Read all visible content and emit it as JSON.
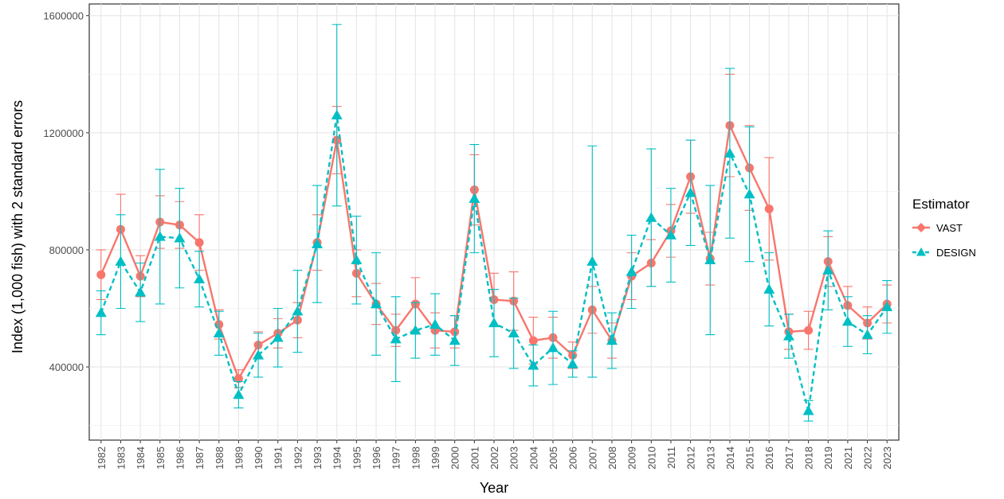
{
  "chart_data": {
    "type": "line",
    "x_label": "Year",
    "y_label": "Index (1,000 fish) with 2 standard errors",
    "legend_title": "Estimator",
    "legend_position": "right",
    "grid": true,
    "categories": [
      "1982",
      "1983",
      "1984",
      "1985",
      "1986",
      "1987",
      "1988",
      "1989",
      "1990",
      "1991",
      "1992",
      "1993",
      "1994",
      "1995",
      "1996",
      "1997",
      "1998",
      "1999",
      "2000",
      "2001",
      "2002",
      "2003",
      "2004",
      "2005",
      "2006",
      "2007",
      "2008",
      "2009",
      "2010",
      "2011",
      "2012",
      "2013",
      "2014",
      "2015",
      "2016",
      "2017",
      "2018",
      "2019",
      "2021",
      "2022",
      "2023"
    ],
    "ylim": [
      150000,
      1640000
    ],
    "yticks": [
      400000,
      800000,
      1200000,
      1600000
    ],
    "series": [
      {
        "name": "VAST",
        "color": "#F8766D",
        "marker": "circle",
        "line_style": "solid",
        "values": [
          715000,
          870000,
          710000,
          895000,
          885000,
          825000,
          545000,
          360000,
          475000,
          515000,
          560000,
          825000,
          1175000,
          720000,
          615000,
          525000,
          615000,
          525000,
          520000,
          1005000,
          630000,
          625000,
          490000,
          500000,
          440000,
          595000,
          490000,
          710000,
          755000,
          865000,
          1050000,
          770000,
          1225000,
          1080000,
          940000,
          520000,
          525000,
          760000,
          610000,
          550000,
          615000
        ],
        "errors": [
          85000,
          120000,
          70000,
          90000,
          80000,
          95000,
          50000,
          30000,
          45000,
          50000,
          60000,
          95000,
          115000,
          80000,
          70000,
          55000,
          90000,
          60000,
          55000,
          120000,
          90000,
          100000,
          80000,
          70000,
          45000,
          80000,
          60000,
          80000,
          80000,
          90000,
          125000,
          90000,
          175000,
          145000,
          175000,
          60000,
          65000,
          85000,
          65000,
          55000,
          65000
        ]
      },
      {
        "name": "DESIGN",
        "color": "#00BFC4",
        "marker": "triangle",
        "line_style": "dashed",
        "values": [
          585000,
          760000,
          655000,
          845000,
          840000,
          700000,
          515000,
          305000,
          440000,
          500000,
          590000,
          820000,
          1260000,
          765000,
          615000,
          495000,
          525000,
          545000,
          490000,
          975000,
          550000,
          515000,
          405000,
          465000,
          410000,
          760000,
          490000,
          725000,
          910000,
          850000,
          995000,
          765000,
          1130000,
          990000,
          665000,
          505000,
          250000,
          730000,
          555000,
          510000,
          605000
        ],
        "errors": [
          75000,
          160000,
          100000,
          230000,
          170000,
          95000,
          75000,
          45000,
          75000,
          100000,
          140000,
          200000,
          310000,
          150000,
          175000,
          145000,
          95000,
          105000,
          85000,
          185000,
          115000,
          120000,
          70000,
          125000,
          45000,
          395000,
          95000,
          125000,
          235000,
          160000,
          180000,
          255000,
          290000,
          230000,
          125000,
          75000,
          35000,
          135000,
          85000,
          65000,
          90000
        ]
      }
    ]
  }
}
